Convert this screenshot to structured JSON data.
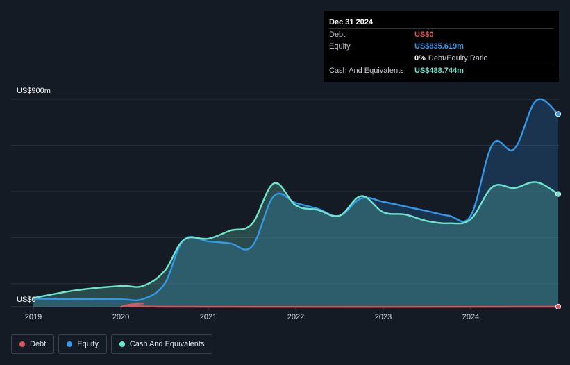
{
  "tooltip": {
    "date": "Dec 31 2024",
    "rows": [
      {
        "label": "Debt",
        "value": "US$0",
        "color": "#e0545b"
      },
      {
        "label": "Equity",
        "value": "US$835.619m",
        "color": "#3399e8"
      },
      {
        "label": "",
        "value": "0%",
        "extra": "Debt/Equity Ratio",
        "color": "#ffffff"
      },
      {
        "label": "Cash And Equivalents",
        "value": "US$488.744m",
        "color": "#6ee6cf"
      }
    ]
  },
  "legend": [
    {
      "label": "Debt",
      "color": "#e0545b"
    },
    {
      "label": "Equity",
      "color": "#3399e8"
    },
    {
      "label": "Cash And Equivalents",
      "color": "#6ee6cf"
    }
  ],
  "chart_data": {
    "type": "area",
    "ylim": [
      0,
      900
    ],
    "y_tick_labels": [
      {
        "value": 900,
        "label": "US$900m"
      },
      {
        "value": 0,
        "label": "US$0"
      }
    ],
    "x_tick_labels": [
      {
        "value": 2019,
        "label": "2019"
      },
      {
        "value": 2020,
        "label": "2020"
      },
      {
        "value": 2021,
        "label": "2021"
      },
      {
        "value": 2022,
        "label": "2022"
      },
      {
        "value": 2023,
        "label": "2023"
      },
      {
        "value": 2024,
        "label": "2024"
      }
    ],
    "xlim": [
      2019,
      2025
    ],
    "grid": true,
    "series": [
      {
        "name": "Equity",
        "color": "#3399e8",
        "points": [
          [
            2019.0,
            35
          ],
          [
            2019.5,
            33
          ],
          [
            2020.0,
            32
          ],
          [
            2020.25,
            33
          ],
          [
            2020.5,
            100
          ],
          [
            2020.72,
            290
          ],
          [
            2021.0,
            283
          ],
          [
            2021.25,
            275
          ],
          [
            2021.5,
            262
          ],
          [
            2021.75,
            480
          ],
          [
            2022.0,
            450
          ],
          [
            2022.25,
            425
          ],
          [
            2022.5,
            395
          ],
          [
            2022.75,
            470
          ],
          [
            2023.0,
            455
          ],
          [
            2023.25,
            435
          ],
          [
            2023.5,
            415
          ],
          [
            2023.75,
            395
          ],
          [
            2024.0,
            395
          ],
          [
            2024.25,
            705
          ],
          [
            2024.5,
            685
          ],
          [
            2024.75,
            895
          ],
          [
            2025.0,
            835.619
          ]
        ]
      },
      {
        "name": "Cash And Equivalents",
        "color": "#6ee6cf",
        "points": [
          [
            2019.0,
            38
          ],
          [
            2019.5,
            72
          ],
          [
            2020.0,
            90
          ],
          [
            2020.25,
            90
          ],
          [
            2020.5,
            155
          ],
          [
            2020.72,
            290
          ],
          [
            2021.0,
            295
          ],
          [
            2021.25,
            330
          ],
          [
            2021.5,
            360
          ],
          [
            2021.75,
            535
          ],
          [
            2022.0,
            440
          ],
          [
            2022.25,
            420
          ],
          [
            2022.5,
            395
          ],
          [
            2022.75,
            480
          ],
          [
            2023.0,
            410
          ],
          [
            2023.25,
            400
          ],
          [
            2023.5,
            372
          ],
          [
            2023.75,
            362
          ],
          [
            2024.0,
            380
          ],
          [
            2024.25,
            520
          ],
          [
            2024.5,
            515
          ],
          [
            2024.75,
            540
          ],
          [
            2025.0,
            488.744
          ]
        ]
      },
      {
        "name": "Debt",
        "color": "#e0545b",
        "points": [
          [
            2020.0,
            0
          ],
          [
            2020.25,
            15
          ],
          [
            2020.5,
            0
          ],
          [
            2025.0,
            0
          ]
        ]
      }
    ]
  }
}
